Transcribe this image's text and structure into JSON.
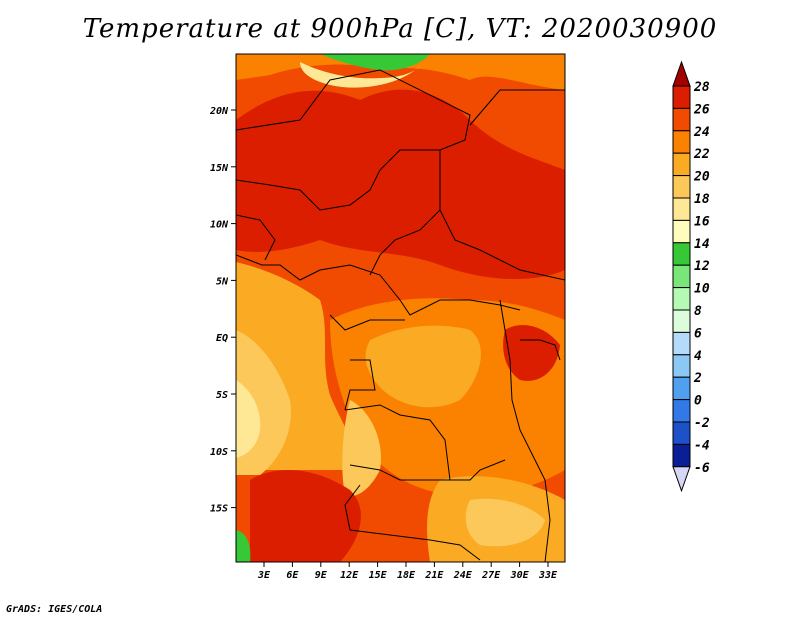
{
  "title": "Temperature at 900hPa [C], VT: 2020030900",
  "credit": "GrADS: IGES/COLA",
  "map": {
    "lat_labels": [
      "20N",
      "15N",
      "10N",
      "5N",
      "EQ",
      "5S",
      "10S",
      "15S"
    ],
    "lon_labels": [
      "3E",
      "6E",
      "9E",
      "12E",
      "15E",
      "18E",
      "21E",
      "24E",
      "27E",
      "30E",
      "33E"
    ]
  },
  "colorbar": {
    "labels": [
      "28",
      "26",
      "24",
      "22",
      "20",
      "18",
      "16",
      "14",
      "12",
      "10",
      "8",
      "6",
      "4",
      "2",
      "0",
      "-2",
      "-4",
      "-6"
    ],
    "colors": [
      "#a50000",
      "#dc1e00",
      "#f04b00",
      "#fa8200",
      "#fbaa23",
      "#fcc85a",
      "#fee895",
      "#fefdbe",
      "#37c837",
      "#78e678",
      "#b4fab4",
      "#dcfcdc",
      "#b4dcfa",
      "#8cc8f5",
      "#50a0f0",
      "#3278e6",
      "#1e50c8",
      "#0a1e96",
      "#000064",
      "#dcdcfa"
    ],
    "top_color": "#a50000",
    "bottom_color": "#d6d6f5"
  },
  "field_colors": {
    "c26": "#dc1e00",
    "c24": "#f04b00",
    "c22": "#fa8200",
    "c20": "#fbaa23",
    "c18": "#fcc85a",
    "c16": "#fee895",
    "c14": "#37c837",
    "c12": "#78e678"
  }
}
